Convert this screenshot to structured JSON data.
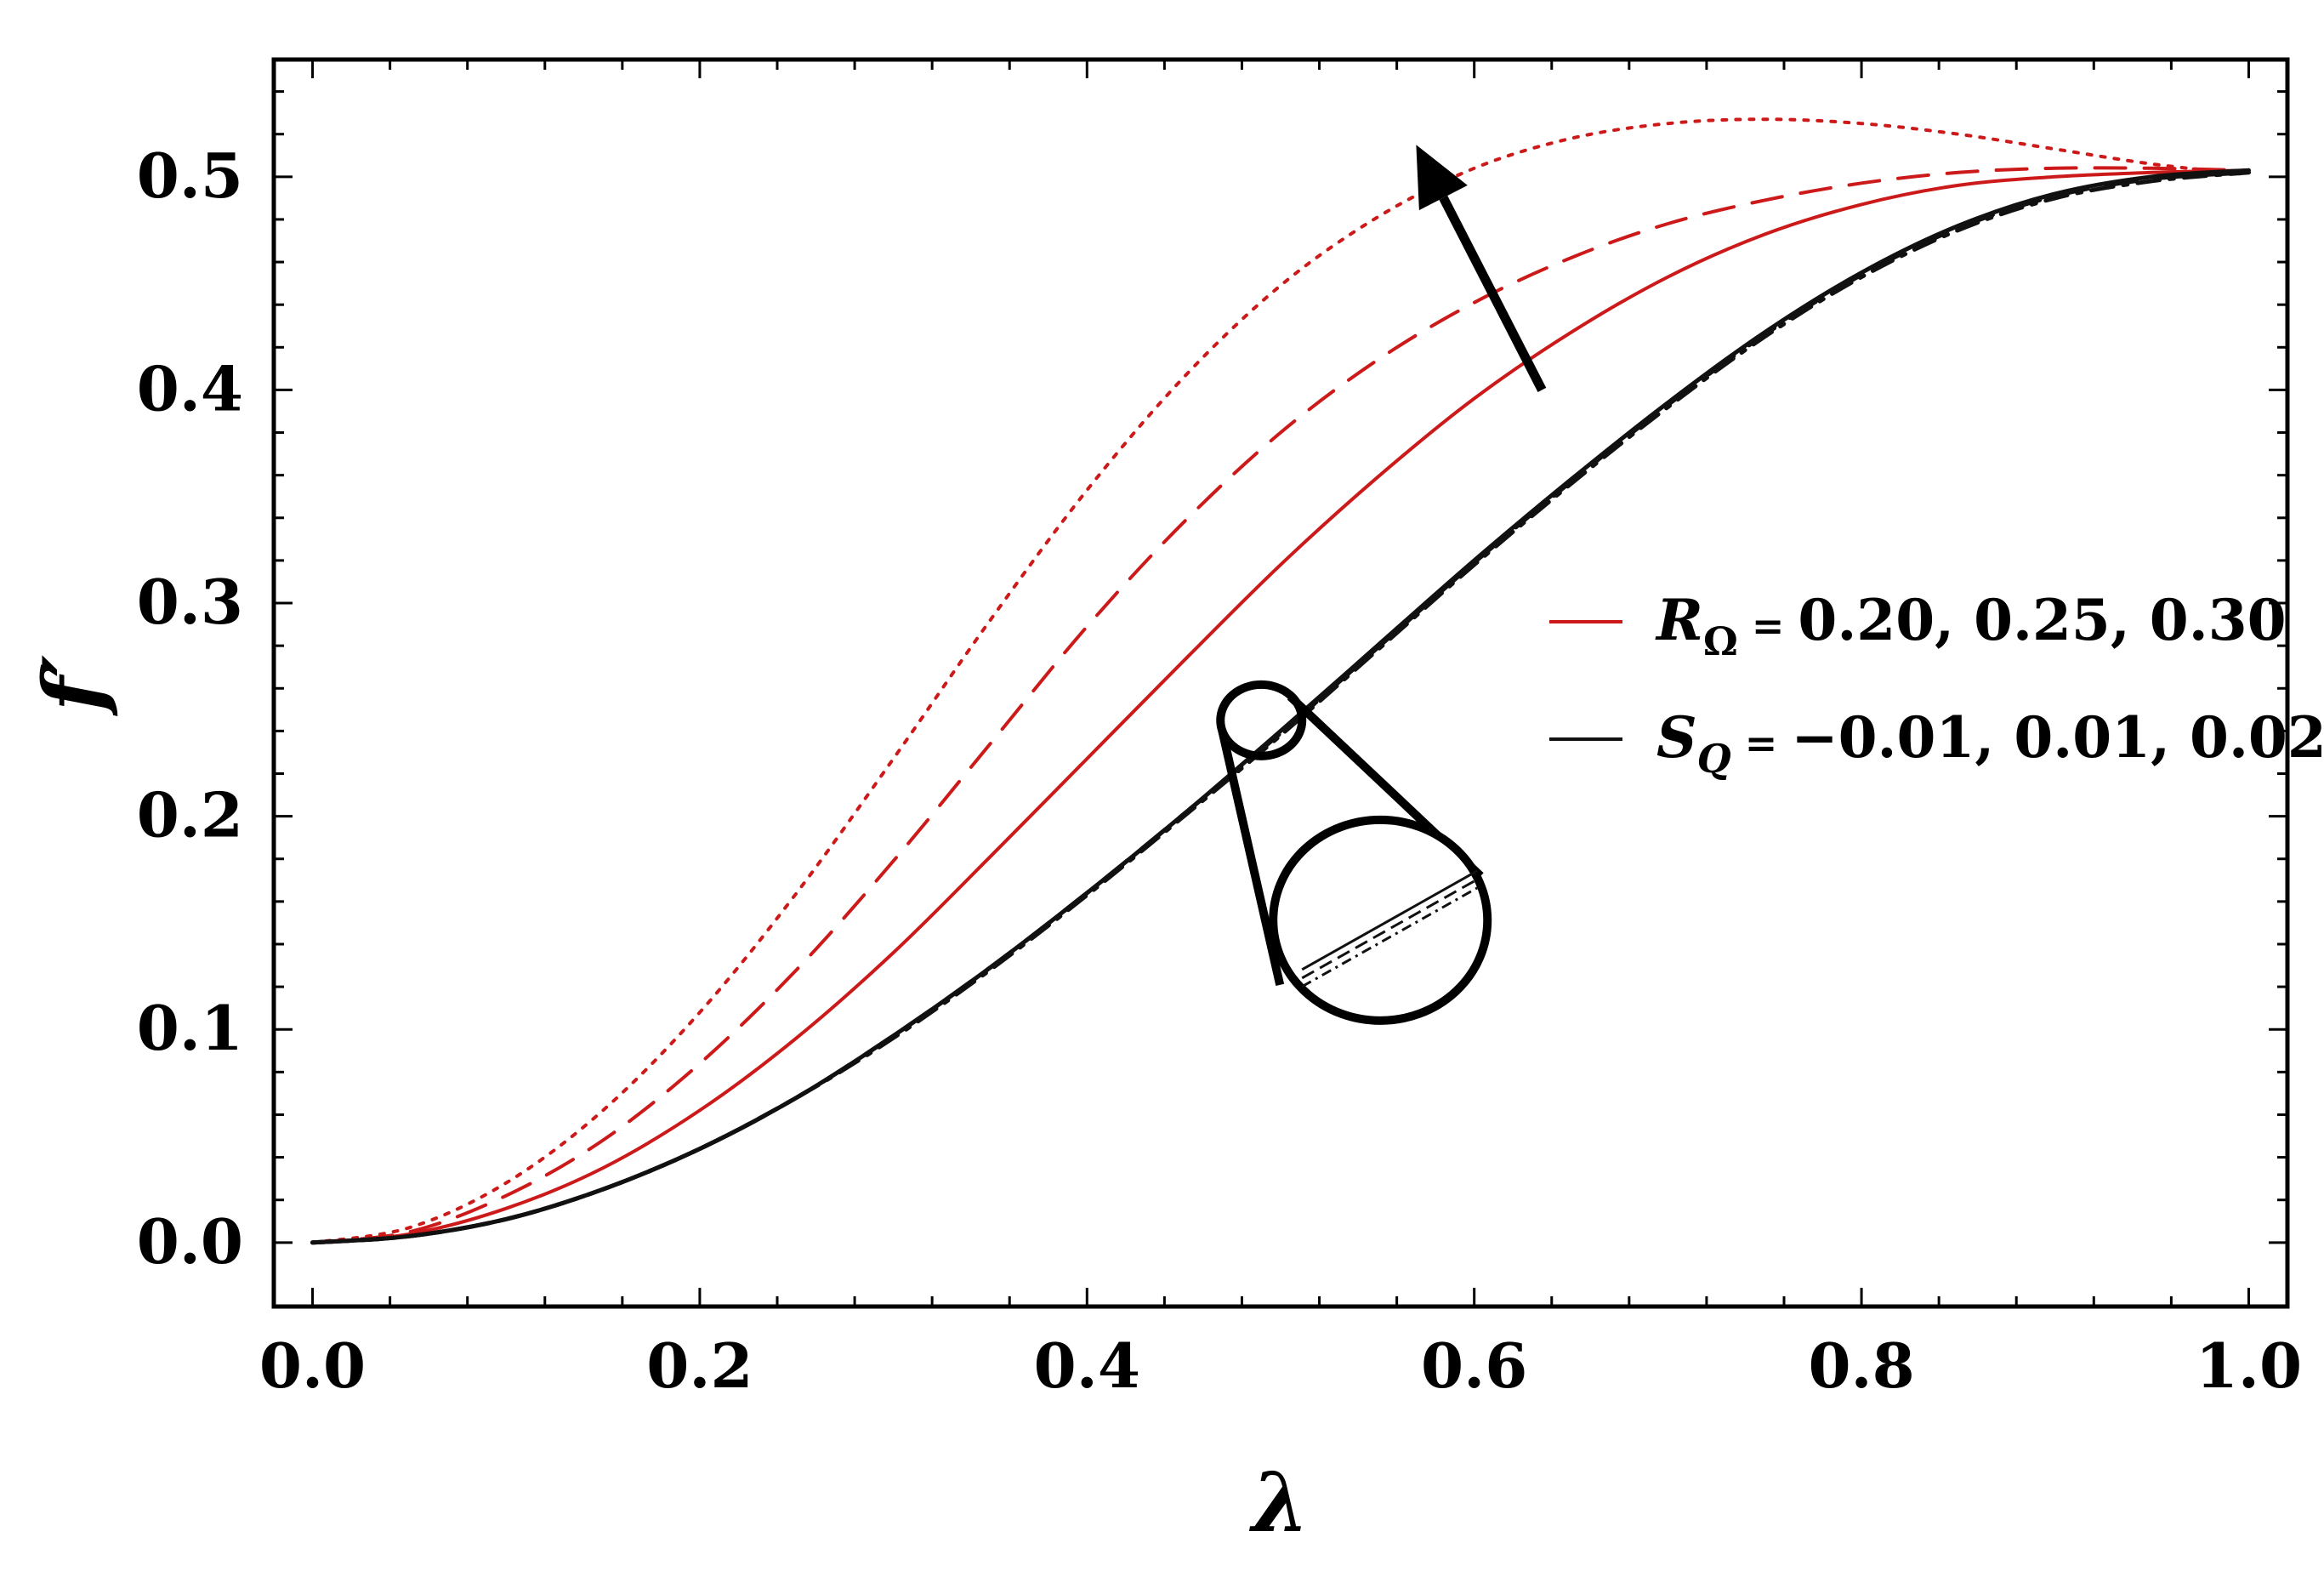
{
  "chart_data": {
    "type": "line",
    "title": "",
    "xlabel": "λ",
    "ylabel": "f′",
    "xlim": [
      -0.02,
      1.02
    ],
    "ylim": [
      -0.03,
      0.555
    ],
    "xticks": [
      0.0,
      0.2,
      0.4,
      0.6,
      0.8,
      1.0
    ],
    "xtick_labels": [
      "0.0",
      "0.2",
      "0.4",
      "0.6",
      "0.8",
      "1.0"
    ],
    "yticks": [
      0.0,
      0.1,
      0.2,
      0.3,
      0.4,
      0.5
    ],
    "ytick_labels": [
      "0.0",
      "0.1",
      "0.2",
      "0.3",
      "0.4",
      "0.5"
    ],
    "grid": false,
    "x": [
      0.0,
      0.05,
      0.1,
      0.15,
      0.2,
      0.25,
      0.3,
      0.35,
      0.4,
      0.45,
      0.5,
      0.55,
      0.6,
      0.65,
      0.7,
      0.75,
      0.8,
      0.85,
      0.9,
      0.95,
      1.0
    ],
    "series": [
      {
        "name": "R_Ω = 0.20",
        "color": "#cc1a1a",
        "dash": "solid",
        "values": [
          0.0,
          0.004,
          0.016,
          0.035,
          0.062,
          0.096,
          0.136,
          0.181,
          0.227,
          0.273,
          0.318,
          0.359,
          0.396,
          0.427,
          0.453,
          0.473,
          0.487,
          0.496,
          0.5,
          0.502,
          0.503
        ]
      },
      {
        "name": "R_Ω = 0.25",
        "color": "#cc1a1a",
        "dash": "dashed",
        "values": [
          0.0,
          0.005,
          0.022,
          0.048,
          0.084,
          0.128,
          0.179,
          0.234,
          0.289,
          0.338,
          0.38,
          0.414,
          0.441,
          0.462,
          0.478,
          0.489,
          0.497,
          0.502,
          0.504,
          0.504,
          0.503
        ]
      },
      {
        "name": "R_Ω = 0.30",
        "color": "#cc1a1a",
        "dash": "dotdot",
        "values": [
          0.0,
          0.007,
          0.028,
          0.062,
          0.108,
          0.164,
          0.227,
          0.292,
          0.353,
          0.406,
          0.449,
          0.481,
          0.504,
          0.518,
          0.525,
          0.527,
          0.525,
          0.52,
          0.513,
          0.506,
          0.501
        ]
      },
      {
        "name": "S_Q = −0.01",
        "color": "#111111",
        "dash": "solid",
        "values": [
          0.0,
          0.003,
          0.011,
          0.025,
          0.044,
          0.068,
          0.097,
          0.129,
          0.164,
          0.201,
          0.24,
          0.28,
          0.32,
          0.358,
          0.394,
          0.427,
          0.455,
          0.477,
          0.492,
          0.5,
          0.503
        ]
      },
      {
        "name": "S_Q = 0.01",
        "color": "#111111",
        "dash": "dashed",
        "values": [
          0.0,
          0.003,
          0.011,
          0.025,
          0.044,
          0.068,
          0.097,
          0.129,
          0.164,
          0.201,
          0.239,
          0.279,
          0.319,
          0.357,
          0.393,
          0.426,
          0.454,
          0.476,
          0.491,
          0.499,
          0.502
        ]
      },
      {
        "name": "S_Q = 0.02",
        "color": "#111111",
        "dash": "dashdot",
        "values": [
          0.0,
          0.003,
          0.011,
          0.025,
          0.044,
          0.068,
          0.096,
          0.128,
          0.163,
          0.2,
          0.238,
          0.278,
          0.318,
          0.356,
          0.392,
          0.425,
          0.453,
          0.475,
          0.49,
          0.498,
          0.502
        ]
      }
    ],
    "legend": {
      "placement": "center-right",
      "entries": [
        {
          "color": "#cc1a1a",
          "symbol": "R",
          "subscript": "Ω",
          "eq": " = ",
          "values_text": "0.20, 0.25, 0.30"
        },
        {
          "color": "#111111",
          "symbol": "S",
          "subscript": "Q",
          "eq": " = ",
          "values_text": "−0.01, 0.01, 0.02"
        }
      ]
    },
    "annotations": {
      "arrow": {
        "from": [
          0.635,
          0.4
        ],
        "to": [
          0.57,
          0.515
        ],
        "meaning": "increasing R_Ω"
      },
      "zoom_circle": {
        "center": [
          0.49,
          0.245
        ],
        "detail": "black curves nearly overlap"
      }
    }
  }
}
